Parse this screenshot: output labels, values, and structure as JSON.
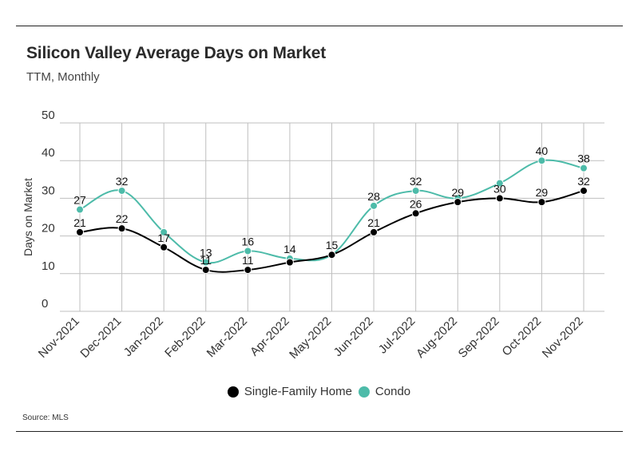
{
  "header": {
    "title": "Silicon Valley Average Days on Market",
    "subtitle": "TTM, Monthly"
  },
  "footer": {
    "source": "Source:  MLS"
  },
  "chart_data": {
    "type": "line",
    "title": "Silicon Valley Average Days on Market",
    "subtitle": "TTM, Monthly",
    "xlabel": "",
    "ylabel": "Days on Market",
    "ylim": [
      0,
      50
    ],
    "yticks": [
      0,
      10,
      20,
      30,
      40,
      50
    ],
    "grid": true,
    "legend_position": "bottom",
    "categories": [
      "Nov-2021",
      "Dec-2021",
      "Jan-2022",
      "Feb-2022",
      "Mar-2022",
      "Apr-2022",
      "May-2022",
      "Jun-2022",
      "Jul-2022",
      "Aug-2022",
      "Sep-2022",
      "Oct-2022",
      "Nov-2022"
    ],
    "series": [
      {
        "name": "Single-Family Home",
        "color": "#000000",
        "values": [
          21,
          22,
          17,
          11,
          11,
          13,
          15,
          21,
          26,
          29,
          30,
          29,
          32
        ],
        "labels": [
          "21",
          "22",
          "17",
          "11",
          "11",
          "",
          "15",
          "21",
          "26",
          "29",
          "30",
          "29",
          "32"
        ]
      },
      {
        "name": "Condo",
        "color": "#4dbba9",
        "values": [
          27,
          32,
          21,
          13,
          16,
          14,
          15,
          28,
          32,
          30,
          34,
          40,
          38
        ],
        "labels": [
          "27",
          "32",
          "",
          "13",
          "16",
          "14",
          "",
          "28",
          "32",
          "",
          "",
          "40",
          "38"
        ]
      }
    ]
  }
}
